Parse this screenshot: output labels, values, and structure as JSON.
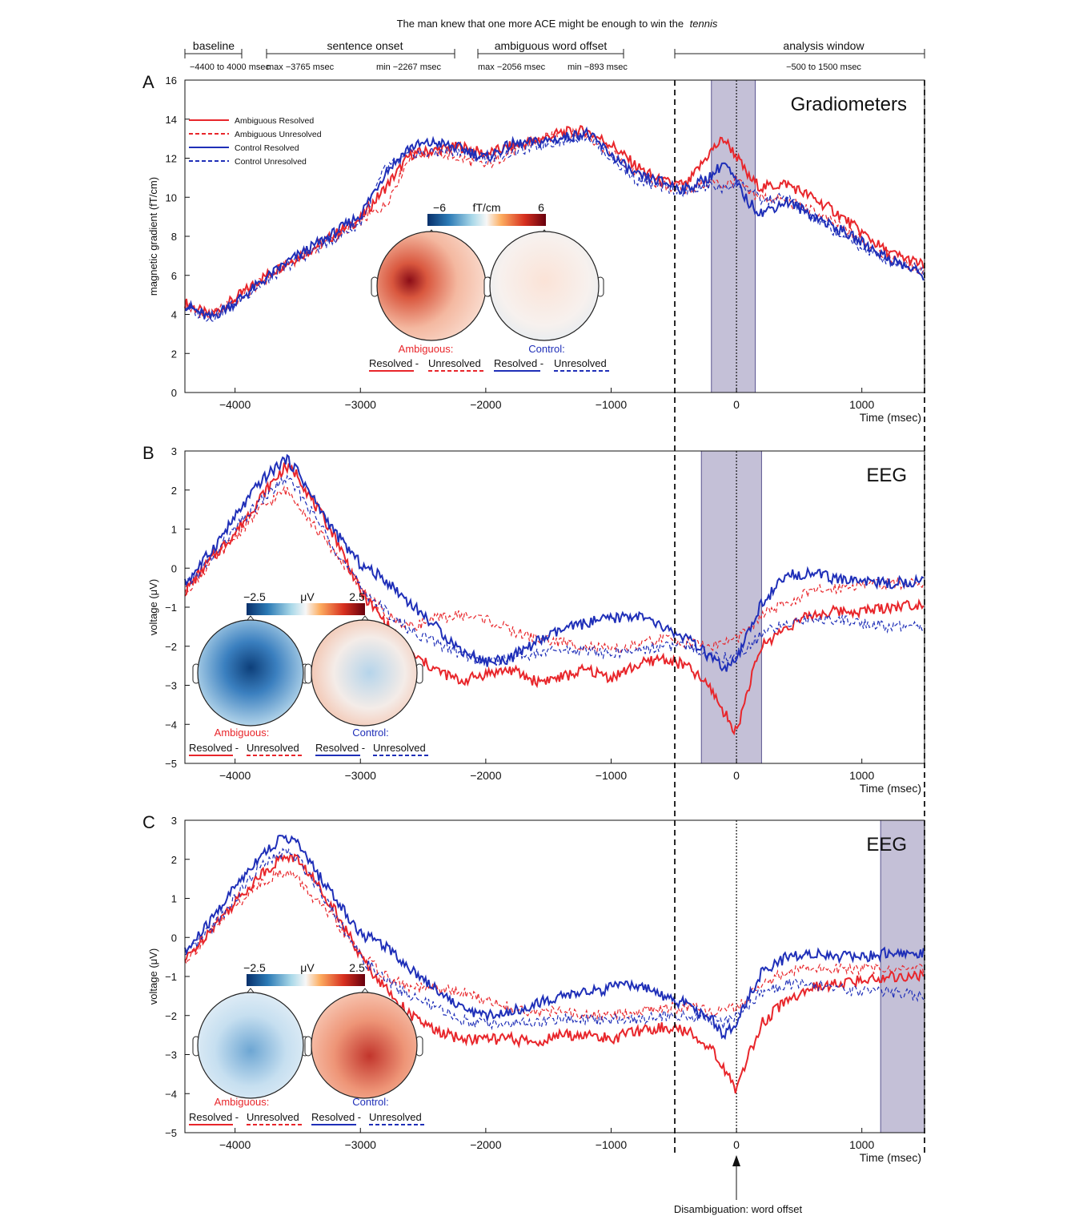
{
  "figure": {
    "sentence": "The man knew that one more ACE might be enough to win the",
    "sentence_last_word": "tennis",
    "timeline": {
      "segments": [
        {
          "label": "baseline",
          "sublabels": [
            "−4400 to 4000 msec"
          ]
        },
        {
          "label": "sentence onset",
          "sublabels": [
            "max −3765 msec",
            "min −2267 msec"
          ]
        },
        {
          "label": "ambiguous word offset",
          "sublabels": [
            "max −2056 msec",
            "min −893 msec"
          ]
        },
        {
          "label": "analysis window",
          "sublabels": [
            "−500 to 1500 msec"
          ]
        }
      ]
    },
    "annotation_bottom": "Disambiguation: word offset",
    "colors": {
      "ambiguous": "#e8262b",
      "control": "#1f2fb8",
      "shade": "#9c96bd",
      "shade_border": "#5a5490"
    }
  },
  "chart_data": [
    {
      "panel": "A",
      "type": "line",
      "title": "Gradiometers",
      "xlabel": "Time (msec)",
      "ylabel": "magnetic gradient (fT/cm)",
      "xlim": [
        -4400,
        1500
      ],
      "ylim": [
        0,
        16
      ],
      "xticks": [
        -4000,
        -3000,
        -2000,
        -1000,
        0,
        1000
      ],
      "xtick_labels": [
        "−4000",
        "−3000",
        "−2000",
        "−1000",
        "0",
        "1000"
      ],
      "yticks": [
        0,
        2,
        4,
        6,
        8,
        10,
        12,
        14,
        16
      ],
      "shaded_window": [
        -200,
        150
      ],
      "legend": {
        "placement": "top-left",
        "entries": [
          "Ambiguous Resolved",
          "Ambiguous Unresolved",
          "Control Resolved",
          "Control Unresolved"
        ]
      },
      "topo": {
        "scale_min": "−6",
        "scale_max": "6",
        "unit": "fT/cm",
        "labels": [
          "Ambiguous:",
          "Control:"
        ],
        "contrast": [
          "Resolved -",
          "Unresolved",
          "Resolved -",
          "Unresolved"
        ]
      },
      "series": [
        {
          "name": "Ambiguous Resolved",
          "x": [
            -4400,
            -4200,
            -4000,
            -3800,
            -3600,
            -3400,
            -3200,
            -3000,
            -2800,
            -2600,
            -2400,
            -2200,
            -2000,
            -1800,
            -1600,
            -1400,
            -1200,
            -1000,
            -800,
            -600,
            -400,
            -200,
            -100,
            0,
            100,
            200,
            400,
            600,
            800,
            1000,
            1200,
            1500
          ],
          "values": [
            4.6,
            3.9,
            4.8,
            5.8,
            6.6,
            7.3,
            8.1,
            8.9,
            10.5,
            12.2,
            12.4,
            12.6,
            12.2,
            12.6,
            12.9,
            13.3,
            13.4,
            12.7,
            11.6,
            10.8,
            10.6,
            12.4,
            13.0,
            12.1,
            11.0,
            10.5,
            10.7,
            10.0,
            9.2,
            8.2,
            7.2,
            6.5
          ]
        },
        {
          "name": "Ambiguous Unresolved",
          "x": [
            -4400,
            -4200,
            -4000,
            -3800,
            -3600,
            -3400,
            -3200,
            -3000,
            -2800,
            -2600,
            -2400,
            -2200,
            -2000,
            -1800,
            -1600,
            -1400,
            -1200,
            -1000,
            -800,
            -600,
            -400,
            -200,
            -100,
            0,
            100,
            200,
            400,
            600,
            800,
            1000,
            1200,
            1500
          ],
          "values": [
            4.4,
            3.9,
            4.7,
            5.6,
            6.5,
            7.2,
            8.0,
            8.8,
            9.6,
            12.2,
            12.3,
            12.0,
            11.6,
            12.3,
            12.9,
            13.2,
            13.2,
            12.3,
            11.2,
            10.6,
            10.4,
            10.8,
            10.6,
            10.9,
            10.2,
            10.0,
            9.8,
            9.3,
            8.6,
            7.8,
            7.0,
            6.2
          ]
        },
        {
          "name": "Control Resolved",
          "x": [
            -4400,
            -4200,
            -4000,
            -3800,
            -3600,
            -3400,
            -3200,
            -3000,
            -2800,
            -2600,
            -2400,
            -2200,
            -2000,
            -1800,
            -1600,
            -1400,
            -1200,
            -1000,
            -800,
            -600,
            -400,
            -200,
            -100,
            0,
            100,
            200,
            400,
            600,
            800,
            1000,
            1200,
            1500
          ],
          "values": [
            4.5,
            3.8,
            4.6,
            5.6,
            6.6,
            7.4,
            8.2,
            9.1,
            11.3,
            12.6,
            12.8,
            12.5,
            12.0,
            12.7,
            12.8,
            13.0,
            13.3,
            12.2,
            11.1,
            10.8,
            10.4,
            11.1,
            11.8,
            10.7,
            9.7,
            9.2,
            9.8,
            9.1,
            8.4,
            7.7,
            6.9,
            6.0
          ]
        },
        {
          "name": "Control Unresolved",
          "x": [
            -4400,
            -4200,
            -4000,
            -3800,
            -3600,
            -3400,
            -3200,
            -3000,
            -2800,
            -2600,
            -2400,
            -2200,
            -2000,
            -1800,
            -1600,
            -1400,
            -1200,
            -1000,
            -800,
            -600,
            -400,
            -200,
            -100,
            0,
            100,
            200,
            400,
            600,
            800,
            1000,
            1200,
            1500
          ],
          "values": [
            4.4,
            3.8,
            4.6,
            5.5,
            6.4,
            7.2,
            7.9,
            8.7,
            11.5,
            12.2,
            12.3,
            12.4,
            12.0,
            12.3,
            12.6,
            12.9,
            13.2,
            12.0,
            10.9,
            10.5,
            10.3,
            10.6,
            10.4,
            10.8,
            10.4,
            9.8,
            10.0,
            9.0,
            8.2,
            7.4,
            6.8,
            6.2
          ]
        }
      ]
    },
    {
      "panel": "B",
      "type": "line",
      "title": "EEG",
      "xlabel": "Time (msec)",
      "ylabel": "voltage (μV)",
      "xlim": [
        -4400,
        1500
      ],
      "ylim": [
        -5,
        3
      ],
      "xticks": [
        -4000,
        -3000,
        -2000,
        -1000,
        0,
        1000
      ],
      "xtick_labels": [
        "−4000",
        "−3000",
        "−2000",
        "−1000",
        "0",
        "1000"
      ],
      "yticks": [
        -5,
        -4,
        -3,
        -2,
        -1,
        0,
        1,
        2,
        3
      ],
      "shaded_window": [
        -280,
        200
      ],
      "topo": {
        "scale_min": "−2.5",
        "scale_max": "2.5",
        "unit": "μV",
        "labels": [
          "Ambiguous:",
          "Control:"
        ],
        "contrast": [
          "Resolved -",
          "Unresolved",
          "Resolved -",
          "Unresolved"
        ]
      },
      "series": [
        {
          "name": "Ambiguous Resolved",
          "x": [
            -4400,
            -4200,
            -4000,
            -3800,
            -3600,
            -3500,
            -3400,
            -3200,
            -3000,
            -2800,
            -2600,
            -2400,
            -2200,
            -2000,
            -1800,
            -1600,
            -1400,
            -1200,
            -1000,
            -800,
            -600,
            -400,
            -200,
            -100,
            0,
            100,
            200,
            400,
            600,
            800,
            1000,
            1200,
            1500
          ],
          "values": [
            -0.6,
            0.2,
            0.9,
            1.8,
            2.6,
            2.4,
            1.8,
            0.8,
            -0.6,
            -1.4,
            -2.2,
            -2.6,
            -2.9,
            -2.7,
            -2.6,
            -2.9,
            -2.8,
            -2.6,
            -2.8,
            -2.5,
            -2.3,
            -2.5,
            -3.1,
            -3.7,
            -4.2,
            -3.0,
            -2.0,
            -1.5,
            -1.2,
            -1.1,
            -1.1,
            -1.0,
            -0.9
          ]
        },
        {
          "name": "Ambiguous Unresolved",
          "x": [
            -4400,
            -4200,
            -4000,
            -3800,
            -3600,
            -3500,
            -3400,
            -3200,
            -3000,
            -2800,
            -2600,
            -2400,
            -2200,
            -2000,
            -1800,
            -1600,
            -1400,
            -1200,
            -1000,
            -800,
            -600,
            -400,
            -200,
            -100,
            0,
            100,
            200,
            400,
            600,
            800,
            1000,
            1200,
            1500
          ],
          "values": [
            -0.6,
            0.1,
            0.8,
            1.5,
            2.0,
            1.7,
            1.2,
            0.4,
            -0.5,
            -1.2,
            -1.5,
            -1.3,
            -1.2,
            -1.3,
            -1.6,
            -1.8,
            -1.9,
            -2.0,
            -2.1,
            -2.0,
            -1.8,
            -1.9,
            -2.0,
            -1.9,
            -1.8,
            -1.6,
            -1.2,
            -0.9,
            -0.6,
            -0.5,
            -0.4,
            -0.4,
            -0.4
          ]
        },
        {
          "name": "Control Resolved",
          "x": [
            -4400,
            -4200,
            -4000,
            -3800,
            -3600,
            -3500,
            -3400,
            -3200,
            -3000,
            -2800,
            -2600,
            -2400,
            -2200,
            -2000,
            -1800,
            -1600,
            -1400,
            -1200,
            -1000,
            -800,
            -600,
            -400,
            -200,
            -100,
            0,
            100,
            200,
            400,
            600,
            800,
            1000,
            1200,
            1500
          ],
          "values": [
            -0.4,
            0.4,
            1.3,
            2.2,
            2.8,
            2.5,
            1.9,
            0.9,
            0.1,
            -0.3,
            -0.9,
            -1.5,
            -2.1,
            -2.4,
            -2.3,
            -1.9,
            -1.6,
            -1.4,
            -1.3,
            -1.2,
            -1.5,
            -1.8,
            -2.3,
            -2.6,
            -2.4,
            -1.6,
            -0.9,
            -0.2,
            -0.1,
            -0.3,
            -0.3,
            -0.4,
            -0.3
          ]
        },
        {
          "name": "Control Unresolved",
          "x": [
            -4400,
            -4200,
            -4000,
            -3800,
            -3600,
            -3500,
            -3400,
            -3200,
            -3000,
            -2800,
            -2600,
            -2400,
            -2200,
            -2000,
            -1800,
            -1600,
            -1400,
            -1200,
            -1000,
            -800,
            -600,
            -400,
            -200,
            -100,
            0,
            100,
            200,
            400,
            600,
            800,
            1000,
            1200,
            1500
          ],
          "values": [
            -0.5,
            0.2,
            1.0,
            1.7,
            2.3,
            2.0,
            1.5,
            0.5,
            -0.5,
            -1.1,
            -1.6,
            -1.9,
            -2.2,
            -2.4,
            -2.3,
            -2.2,
            -2.1,
            -2.1,
            -2.2,
            -2.1,
            -2.0,
            -2.0,
            -2.2,
            -2.3,
            -2.2,
            -2.0,
            -1.7,
            -1.4,
            -1.3,
            -1.3,
            -1.4,
            -1.5,
            -1.5
          ]
        }
      ]
    },
    {
      "panel": "C",
      "type": "line",
      "title": "EEG",
      "xlabel": "Time (msec)",
      "ylabel": "voltage (μV)",
      "xlim": [
        -4400,
        1500
      ],
      "ylim": [
        -5,
        3
      ],
      "xticks": [
        -4000,
        -3000,
        -2000,
        -1000,
        0,
        1000
      ],
      "xtick_labels": [
        "−4000",
        "−3000",
        "−2000",
        "−1000",
        "0",
        "1000"
      ],
      "yticks": [
        -5,
        -4,
        -3,
        -2,
        -1,
        0,
        1,
        2,
        3
      ],
      "shaded_window": [
        1150,
        1500
      ],
      "topo": {
        "scale_min": "−2.5",
        "scale_max": "2.5",
        "unit": "μV",
        "labels": [
          "Ambiguous:",
          "Control:"
        ],
        "contrast": [
          "Resolved -",
          "Unresolved",
          "Resolved -",
          "Unresolved"
        ]
      },
      "series": [
        {
          "name": "Ambiguous Resolved",
          "x": [
            -4400,
            -4200,
            -4000,
            -3800,
            -3600,
            -3500,
            -3400,
            -3200,
            -3000,
            -2800,
            -2600,
            -2400,
            -2200,
            -2000,
            -1800,
            -1600,
            -1400,
            -1200,
            -1000,
            -800,
            -600,
            -400,
            -200,
            -100,
            0,
            100,
            200,
            400,
            600,
            800,
            1000,
            1200,
            1500
          ],
          "values": [
            -0.6,
            0.2,
            0.9,
            1.6,
            2.1,
            2.0,
            1.6,
            0.7,
            -0.5,
            -1.3,
            -2.0,
            -2.4,
            -2.6,
            -2.6,
            -2.6,
            -2.7,
            -2.5,
            -2.5,
            -2.6,
            -2.4,
            -2.3,
            -2.4,
            -2.8,
            -3.4,
            -3.9,
            -3.0,
            -2.2,
            -1.6,
            -1.3,
            -1.2,
            -1.1,
            -1.0,
            -1.0
          ]
        },
        {
          "name": "Ambiguous Unresolved",
          "x": [
            -4400,
            -4200,
            -4000,
            -3800,
            -3600,
            -3500,
            -3400,
            -3200,
            -3000,
            -2800,
            -2600,
            -2400,
            -2200,
            -2000,
            -1800,
            -1600,
            -1400,
            -1200,
            -1000,
            -800,
            -600,
            -400,
            -200,
            -100,
            0,
            100,
            200,
            400,
            600,
            800,
            1000,
            1200,
            1500
          ],
          "values": [
            -0.6,
            0.1,
            0.8,
            1.4,
            1.7,
            1.5,
            1.1,
            0.4,
            -0.4,
            -1.0,
            -1.3,
            -1.3,
            -1.4,
            -1.6,
            -1.8,
            -1.9,
            -1.9,
            -2.0,
            -2.0,
            -1.9,
            -1.8,
            -1.8,
            -1.9,
            -1.9,
            -1.8,
            -1.5,
            -1.2,
            -0.9,
            -0.8,
            -0.8,
            -0.8,
            -0.8,
            -0.8
          ]
        },
        {
          "name": "Control Resolved",
          "x": [
            -4400,
            -4200,
            -4000,
            -3800,
            -3600,
            -3500,
            -3400,
            -3200,
            -3000,
            -2800,
            -2600,
            -2400,
            -2200,
            -2000,
            -1800,
            -1600,
            -1400,
            -1200,
            -1000,
            -800,
            -600,
            -400,
            -200,
            -100,
            0,
            100,
            200,
            400,
            600,
            800,
            1000,
            1200,
            1500
          ],
          "values": [
            -0.4,
            0.4,
            1.3,
            2.1,
            2.6,
            2.4,
            1.9,
            1.0,
            0.1,
            -0.2,
            -0.8,
            -1.3,
            -1.8,
            -2.0,
            -1.9,
            -1.7,
            -1.5,
            -1.4,
            -1.3,
            -1.2,
            -1.5,
            -1.7,
            -2.1,
            -2.5,
            -2.2,
            -1.5,
            -0.9,
            -0.5,
            -0.4,
            -0.5,
            -0.5,
            -0.4,
            -0.4
          ]
        },
        {
          "name": "Control Unresolved",
          "x": [
            -4400,
            -4200,
            -4000,
            -3800,
            -3600,
            -3500,
            -3400,
            -3200,
            -3000,
            -2800,
            -2600,
            -2400,
            -2200,
            -2000,
            -1800,
            -1600,
            -1400,
            -1200,
            -1000,
            -800,
            -600,
            -400,
            -200,
            -100,
            0,
            100,
            200,
            400,
            600,
            800,
            1000,
            1200,
            1500
          ],
          "values": [
            -0.5,
            0.2,
            1.0,
            1.8,
            2.2,
            2.0,
            1.6,
            0.6,
            -0.5,
            -1.1,
            -1.5,
            -1.8,
            -2.1,
            -2.2,
            -2.2,
            -2.2,
            -2.1,
            -2.1,
            -2.1,
            -2.1,
            -2.0,
            -2.0,
            -2.1,
            -2.2,
            -2.0,
            -1.7,
            -1.4,
            -1.2,
            -1.2,
            -1.3,
            -1.4,
            -1.4,
            -1.5
          ]
        }
      ]
    }
  ]
}
